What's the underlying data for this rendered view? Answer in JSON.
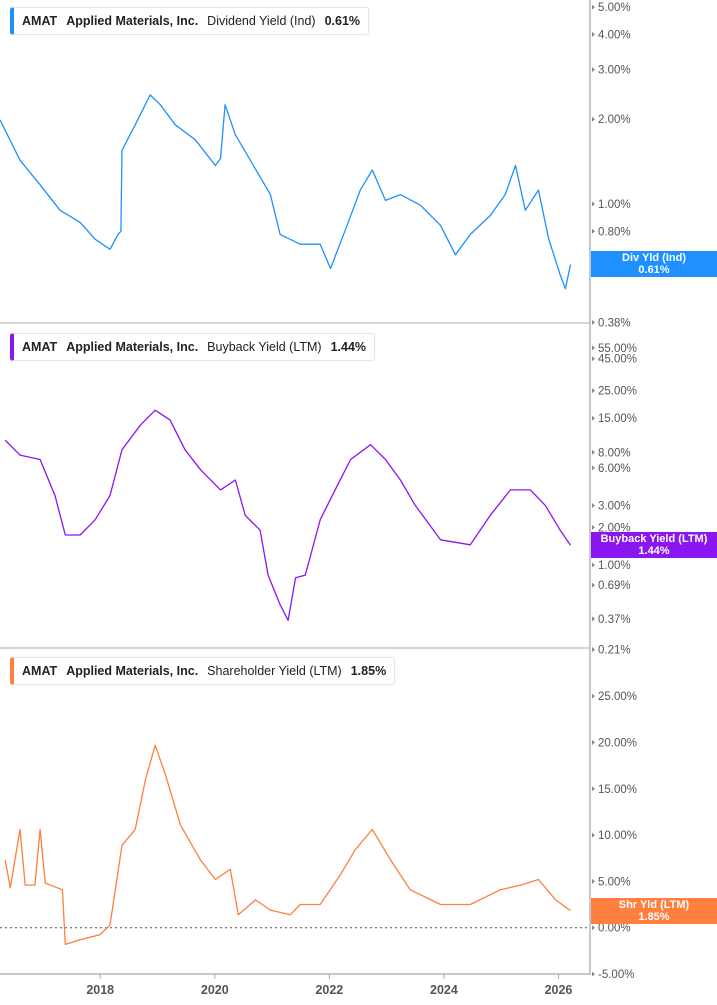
{
  "ticker": "AMAT",
  "company": "Applied Materials, Inc.",
  "chart_data": [
    {
      "type": "line",
      "scale": "log",
      "color": "#1e90ff",
      "legend": {
        "metric": "Dividend Yield (Ind)",
        "value": "0.61%"
      },
      "tag": {
        "label": "Div Yld (Ind)",
        "value": "0.61%",
        "at": 0.61
      },
      "ylim": [
        0.378,
        5.3
      ],
      "xlim": [
        2016.25,
        2026.55
      ],
      "yticks": [
        {
          "v": 5,
          "label": "5.00%"
        },
        {
          "v": 4,
          "label": "4.00%"
        },
        {
          "v": 3,
          "label": "3.00%"
        },
        {
          "v": 2,
          "label": "2.00%"
        },
        {
          "v": 1,
          "label": "1.00%"
        },
        {
          "v": 0.8,
          "label": "0.80%"
        },
        {
          "v": 0.59,
          "label": "0.59%"
        },
        {
          "v": 0.38,
          "label": "0.38%"
        }
      ],
      "points": [
        [
          2016.25,
          1.99
        ],
        [
          2016.6,
          1.43
        ],
        [
          2016.95,
          1.17
        ],
        [
          2017.3,
          0.95
        ],
        [
          2017.65,
          0.86
        ],
        [
          2017.91,
          0.75
        ],
        [
          2018.17,
          0.69
        ],
        [
          2018.31,
          0.78
        ],
        [
          2018.36,
          0.8
        ],
        [
          2018.38,
          1.55
        ],
        [
          2018.61,
          1.91
        ],
        [
          2018.87,
          2.44
        ],
        [
          2019.05,
          2.25
        ],
        [
          2019.31,
          1.91
        ],
        [
          2019.66,
          1.69
        ],
        [
          2020.01,
          1.37
        ],
        [
          2020.1,
          1.45
        ],
        [
          2020.18,
          2.25
        ],
        [
          2020.36,
          1.76
        ],
        [
          2020.62,
          1.43
        ],
        [
          2020.97,
          1.08
        ],
        [
          2021.14,
          0.78
        ],
        [
          2021.49,
          0.72
        ],
        [
          2021.84,
          0.72
        ],
        [
          2022.02,
          0.59
        ],
        [
          2022.28,
          0.81
        ],
        [
          2022.54,
          1.12
        ],
        [
          2022.75,
          1.32
        ],
        [
          2022.98,
          1.03
        ],
        [
          2023.24,
          1.08
        ],
        [
          2023.59,
          0.99
        ],
        [
          2023.94,
          0.84
        ],
        [
          2024.2,
          0.66
        ],
        [
          2024.46,
          0.78
        ],
        [
          2024.81,
          0.91
        ],
        [
          2025.07,
          1.08
        ],
        [
          2025.25,
          1.37
        ],
        [
          2025.42,
          0.95
        ],
        [
          2025.65,
          1.12
        ],
        [
          2025.83,
          0.75
        ],
        [
          2026.03,
          0.56
        ],
        [
          2026.12,
          0.5
        ],
        [
          2026.21,
          0.61
        ]
      ]
    },
    {
      "type": "line",
      "scale": "log",
      "color": "#8a16f0",
      "legend": {
        "metric": "Buyback Yield (LTM)",
        "value": "1.44%"
      },
      "tag": {
        "label": "Buyback Yield (LTM)",
        "value": "1.44%",
        "at": 1.44
      },
      "ylim": [
        0.216,
        87
      ],
      "xlim": [
        2016.25,
        2026.55
      ],
      "yticks": [
        {
          "v": 55,
          "label": "55.00%"
        },
        {
          "v": 45,
          "label": "45.00%"
        },
        {
          "v": 25,
          "label": "25.00%"
        },
        {
          "v": 15,
          "label": "15.00%"
        },
        {
          "v": 8,
          "label": "8.00%"
        },
        {
          "v": 6,
          "label": "6.00%"
        },
        {
          "v": 3,
          "label": "3.00%"
        },
        {
          "v": 2,
          "label": "2.00%"
        },
        {
          "v": 1,
          "label": "1.00%"
        },
        {
          "v": 0.69,
          "label": "0.69%"
        },
        {
          "v": 0.37,
          "label": "0.37%"
        },
        {
          "v": 0.21,
          "label": "0.21%"
        }
      ],
      "points": [
        [
          2016.34,
          10.0
        ],
        [
          2016.6,
          7.6
        ],
        [
          2016.95,
          7.0
        ],
        [
          2017.21,
          3.6
        ],
        [
          2017.39,
          1.74
        ],
        [
          2017.65,
          1.74
        ],
        [
          2017.91,
          2.3
        ],
        [
          2018.17,
          3.6
        ],
        [
          2018.38,
          8.4
        ],
        [
          2018.7,
          13.2
        ],
        [
          2018.96,
          17.4
        ],
        [
          2019.22,
          14.5
        ],
        [
          2019.48,
          8.4
        ],
        [
          2019.75,
          5.8
        ],
        [
          2020.1,
          4.0
        ],
        [
          2020.36,
          4.8
        ],
        [
          2020.53,
          2.5
        ],
        [
          2020.79,
          1.9
        ],
        [
          2020.93,
          0.83
        ],
        [
          2021.14,
          0.48
        ],
        [
          2021.28,
          0.36
        ],
        [
          2021.41,
          0.79
        ],
        [
          2021.58,
          0.83
        ],
        [
          2021.84,
          2.3
        ],
        [
          2022.1,
          4.0
        ],
        [
          2022.37,
          7.0
        ],
        [
          2022.72,
          9.2
        ],
        [
          2022.98,
          7.0
        ],
        [
          2023.24,
          4.8
        ],
        [
          2023.5,
          3.0
        ],
        [
          2023.94,
          1.59
        ],
        [
          2024.46,
          1.45
        ],
        [
          2024.81,
          2.5
        ],
        [
          2025.16,
          4.0
        ],
        [
          2025.51,
          4.0
        ],
        [
          2025.77,
          3.0
        ],
        [
          2026.03,
          1.9
        ],
        [
          2026.21,
          1.44
        ]
      ]
    },
    {
      "type": "line",
      "scale": "linear",
      "color": "#ff7f3f",
      "legend": {
        "metric": "Shareholder Yield (LTM)",
        "value": "1.85%"
      },
      "tag": {
        "label": "Shr Yld (LTM)",
        "value": "1.85%",
        "at": 1.85
      },
      "ylim": [
        -5,
        30.2
      ],
      "xlim": [
        2016.25,
        2026.55
      ],
      "zero_line": true,
      "yticks": [
        {
          "v": 25,
          "label": "25.00%"
        },
        {
          "v": 20,
          "label": "20.00%"
        },
        {
          "v": 15,
          "label": "15.00%"
        },
        {
          "v": 10,
          "label": "10.00%"
        },
        {
          "v": 5,
          "label": "5.00%"
        },
        {
          "v": 0,
          "label": "0.00%"
        },
        {
          "v": -5,
          "label": "-5.00%"
        }
      ],
      "points": [
        [
          2016.34,
          7.3
        ],
        [
          2016.43,
          4.3
        ],
        [
          2016.6,
          10.6
        ],
        [
          2016.69,
          4.6
        ],
        [
          2016.86,
          4.6
        ],
        [
          2016.95,
          10.6
        ],
        [
          2017.04,
          4.8
        ],
        [
          2017.34,
          4.1
        ],
        [
          2017.39,
          -1.8
        ],
        [
          2017.65,
          -1.3
        ],
        [
          2018.0,
          -0.75
        ],
        [
          2018.17,
          0.3
        ],
        [
          2018.38,
          8.9
        ],
        [
          2018.61,
          10.6
        ],
        [
          2018.79,
          16.0
        ],
        [
          2018.96,
          19.7
        ],
        [
          2019.14,
          16.5
        ],
        [
          2019.4,
          11.1
        ],
        [
          2019.75,
          7.3
        ],
        [
          2020.01,
          5.2
        ],
        [
          2020.27,
          6.3
        ],
        [
          2020.41,
          1.4
        ],
        [
          2020.71,
          3.0
        ],
        [
          2020.97,
          1.9
        ],
        [
          2021.32,
          1.4
        ],
        [
          2021.49,
          2.5
        ],
        [
          2021.84,
          2.5
        ],
        [
          2022.19,
          5.7
        ],
        [
          2022.45,
          8.4
        ],
        [
          2022.75,
          10.6
        ],
        [
          2023.07,
          7.3
        ],
        [
          2023.41,
          4.1
        ],
        [
          2023.94,
          2.5
        ],
        [
          2024.46,
          2.5
        ],
        [
          2024.99,
          4.1
        ],
        [
          2025.34,
          4.6
        ],
        [
          2025.65,
          5.2
        ],
        [
          2025.95,
          3.0
        ],
        [
          2026.21,
          1.85
        ]
      ]
    }
  ],
  "x_axis": {
    "ticks": [
      {
        "v": 2018,
        "label": "2018"
      },
      {
        "v": 2020,
        "label": "2020"
      },
      {
        "v": 2022,
        "label": "2022"
      },
      {
        "v": 2024,
        "label": "2024"
      },
      {
        "v": 2026,
        "label": "2026"
      }
    ]
  }
}
